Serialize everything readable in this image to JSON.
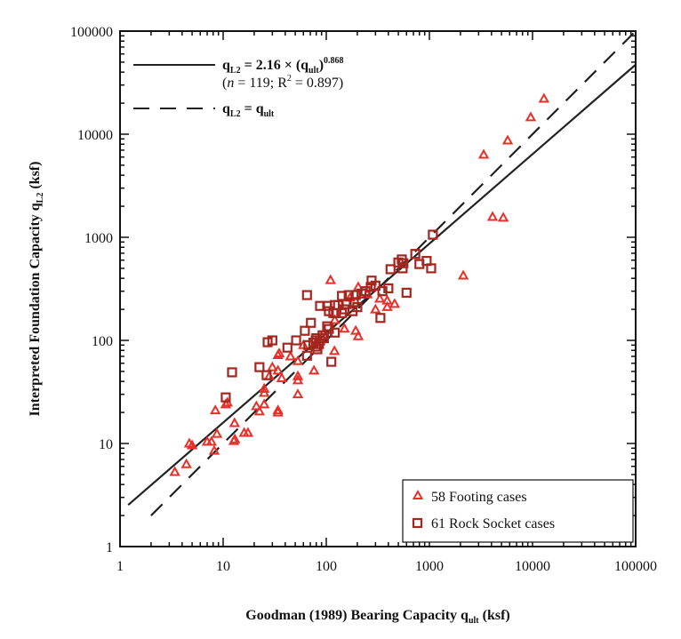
{
  "chart_data": {
    "type": "scatter",
    "xlabel": "Goodman (1989) Bearing Capacity q",
    "xlabel_sub": "ult",
    "xlabel_unit": " (ksf)",
    "ylabel": "Interpreted Foundation Capacity q",
    "ylabel_sub": "L2",
    "ylabel_unit": " (ksf)",
    "x_scale": "log",
    "y_scale": "log",
    "xlim": [
      1,
      100000
    ],
    "ylim": [
      1,
      100000
    ],
    "x_ticks": [
      "1",
      "10",
      "100",
      "1000",
      "10000",
      "100000"
    ],
    "y_ticks": [
      "1",
      "10",
      "100",
      "1000",
      "10000",
      "100000"
    ],
    "grid": false,
    "lines": [
      {
        "kind": "fit",
        "style": "solid",
        "coef": 2.16,
        "exponent": 0.868,
        "x_range": [
          1.2,
          100000
        ],
        "legend": {
          "lhs": "q",
          "lhs_sub": "L2",
          "eq": " = 2.16 × (q",
          "rhs_sub": "ult",
          "close": ")",
          "sup": "0.868",
          "stats_pre": "(",
          "stats_n": "n",
          "stats_post": " = 119; R",
          "stats_sup": "2",
          "stats_end": " = 0.897)"
        }
      },
      {
        "kind": "identity",
        "style": "dashed",
        "x_range": [
          2,
          95000
        ],
        "legend": {
          "lhs": "q",
          "lhs_sub": "L2",
          "eq": " = q",
          "rhs_sub": "ult"
        }
      }
    ],
    "series": [
      {
        "name": "58 Footing cases",
        "marker": "triangle",
        "color": "#e8302a",
        "points": [
          [
            3.4,
            5.3
          ],
          [
            4.4,
            6.3
          ],
          [
            4.7,
            10
          ],
          [
            5.0,
            9.6
          ],
          [
            7.0,
            10.4
          ],
          [
            7.7,
            10.4
          ],
          [
            8.2,
            8.5
          ],
          [
            8.4,
            21
          ],
          [
            8.7,
            12.4
          ],
          [
            10.6,
            24
          ],
          [
            11,
            25
          ],
          [
            12.7,
            10.6
          ],
          [
            12.9,
            15.8
          ],
          [
            13,
            11
          ],
          [
            16,
            12.7
          ],
          [
            17.4,
            12.7
          ],
          [
            21,
            23
          ],
          [
            22.5,
            20.5
          ],
          [
            25,
            24
          ],
          [
            25,
            34
          ],
          [
            25,
            31
          ],
          [
            28,
            45
          ],
          [
            30,
            55
          ],
          [
            34,
            21
          ],
          [
            34,
            20
          ],
          [
            34,
            72
          ],
          [
            35,
            75
          ],
          [
            34,
            51
          ],
          [
            37,
            43
          ],
          [
            45,
            70
          ],
          [
            53,
            63
          ],
          [
            53,
            45
          ],
          [
            53,
            41
          ],
          [
            53,
            30
          ],
          [
            60,
            90
          ],
          [
            76,
            51
          ],
          [
            90,
            110
          ],
          [
            110,
            385
          ],
          [
            120,
            79
          ],
          [
            121,
            158
          ],
          [
            150,
            130
          ],
          [
            170,
            260
          ],
          [
            193,
            124
          ],
          [
            204,
            110
          ],
          [
            204,
            330
          ],
          [
            250,
            280
          ],
          [
            300,
            200
          ],
          [
            330,
            254
          ],
          [
            390,
            244
          ],
          [
            390,
            211
          ],
          [
            460,
            226
          ],
          [
            2130,
            426
          ],
          [
            3360,
            6340
          ],
          [
            4100,
            1580
          ],
          [
            5200,
            1550
          ],
          [
            5740,
            8700
          ],
          [
            9600,
            14600
          ],
          [
            12900,
            22100
          ]
        ]
      },
      {
        "name": "61 Rock Socket cases",
        "marker": "square",
        "color": "#a3271f",
        "points": [
          [
            10.6,
            28
          ],
          [
            12.2,
            49
          ],
          [
            22.5,
            55
          ],
          [
            26.4,
            46
          ],
          [
            27,
            96
          ],
          [
            30,
            100
          ],
          [
            42,
            85
          ],
          [
            51,
            100
          ],
          [
            62,
            124
          ],
          [
            65,
            275
          ],
          [
            65,
            71
          ],
          [
            67,
            90
          ],
          [
            71,
            148
          ],
          [
            75,
            95
          ],
          [
            79,
            87
          ],
          [
            79,
            100
          ],
          [
            80,
            105
          ],
          [
            82,
            82
          ],
          [
            85,
            92
          ],
          [
            87,
            100
          ],
          [
            87,
            216
          ],
          [
            92,
            112
          ],
          [
            95,
            105
          ],
          [
            102,
            216
          ],
          [
            102,
            137
          ],
          [
            106,
            129
          ],
          [
            106,
            192
          ],
          [
            112,
            62
          ],
          [
            117,
            184
          ],
          [
            121,
            220
          ],
          [
            121,
            119
          ],
          [
            124,
            184
          ],
          [
            130,
            220
          ],
          [
            142,
            270
          ],
          [
            142,
            184
          ],
          [
            150,
            200
          ],
          [
            158,
            225
          ],
          [
            165,
            275
          ],
          [
            180,
            192
          ],
          [
            185,
            235
          ],
          [
            193,
            275
          ],
          [
            200,
            210
          ],
          [
            220,
            285
          ],
          [
            240,
            300
          ],
          [
            270,
            330
          ],
          [
            275,
            380
          ],
          [
            300,
            340
          ],
          [
            335,
            165
          ],
          [
            350,
            300
          ],
          [
            400,
            320
          ],
          [
            420,
            490
          ],
          [
            500,
            570
          ],
          [
            540,
            610
          ],
          [
            550,
            500
          ],
          [
            560,
            560
          ],
          [
            600,
            290
          ],
          [
            730,
            690
          ],
          [
            800,
            550
          ],
          [
            940,
            590
          ],
          [
            1040,
            500
          ],
          [
            1080,
            1060
          ]
        ]
      }
    ],
    "legend_placement": "bottom-right"
  }
}
